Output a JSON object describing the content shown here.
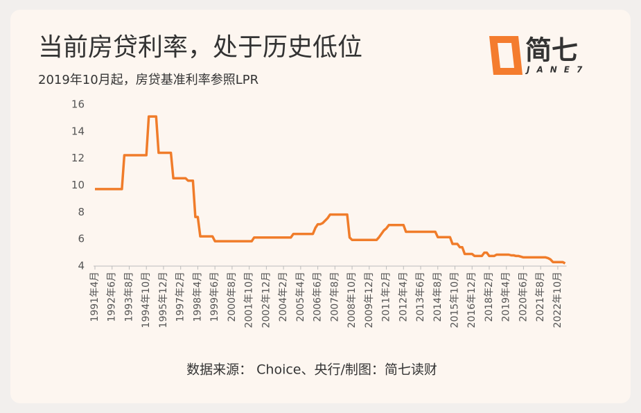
{
  "logo": {
    "name": "简七",
    "sub": "JANE7"
  },
  "chart_data": {
    "type": "line",
    "title": "当前房贷利率，处于历史低位",
    "subtitle": "2019年10月起，房贷基准利率参照LPR",
    "source": "数据来源： Choice、央行/制图：简七读财",
    "color": "#f07c2a",
    "ylim": [
      4,
      16
    ],
    "yticks": [
      4,
      6,
      8,
      10,
      12,
      14,
      16
    ],
    "categories": [
      "1991年4月",
      null,
      null,
      null,
      null,
      null,
      null,
      "1992年6月",
      null,
      null,
      null,
      null,
      null,
      null,
      "1993年8月",
      null,
      null,
      null,
      null,
      null,
      null,
      "1994年10月",
      null,
      null,
      null,
      null,
      null,
      null,
      "1995年12月",
      null,
      null,
      null,
      null,
      null,
      null,
      "1997年2月",
      null,
      null,
      null,
      null,
      null,
      null,
      "1998年4月",
      null,
      null,
      null,
      null,
      null,
      null,
      "1999年6月",
      null,
      null,
      null,
      null,
      null,
      null,
      "2000年8月",
      null,
      null,
      null,
      null,
      null,
      null,
      "2001年10月",
      null,
      null,
      null,
      null,
      null,
      null,
      "2002年12月",
      null,
      null,
      null,
      null,
      null,
      null,
      "2004年2月",
      null,
      null,
      null,
      null,
      null,
      null,
      "2005年4月",
      null,
      null,
      null,
      null,
      null,
      null,
      "2006年6月",
      null,
      null,
      null,
      null,
      null,
      null,
      "2007年8月",
      null,
      null,
      null,
      null,
      null,
      null,
      "2008年10月",
      null,
      null,
      null,
      null,
      null,
      null,
      "2009年12月",
      null,
      null,
      null,
      null,
      null,
      null,
      "2011年2月",
      null,
      null,
      null,
      null,
      null,
      null,
      "2012年4月",
      null,
      null,
      null,
      null,
      null,
      null,
      "2013年6月",
      null,
      null,
      null,
      null,
      null,
      null,
      "2014年8月",
      null,
      null,
      null,
      null,
      null,
      null,
      "2015年10月",
      null,
      null,
      null,
      null,
      null,
      null,
      "2016年12月",
      null,
      null,
      null,
      null,
      null,
      null,
      "2018年2月",
      null,
      null,
      null,
      null,
      null,
      null,
      "2019年4月",
      null,
      null,
      null,
      null,
      null,
      null,
      "2020年6月",
      null,
      null,
      null,
      null,
      null,
      null,
      "2021年8月",
      null,
      null,
      null,
      null,
      null,
      null,
      "2022年10月",
      null,
      null,
      null
    ],
    "values": [
      9.72,
      9.72,
      9.72,
      9.72,
      9.72,
      9.72,
      9.72,
      9.72,
      9.72,
      9.72,
      9.72,
      9.72,
      12.24,
      12.24,
      12.24,
      12.24,
      12.24,
      12.24,
      12.24,
      12.24,
      12.24,
      12.24,
      15.12,
      15.12,
      15.12,
      15.12,
      12.42,
      12.42,
      12.42,
      12.42,
      12.42,
      12.42,
      10.53,
      10.53,
      10.53,
      10.53,
      10.53,
      10.53,
      10.35,
      10.35,
      10.35,
      7.65,
      7.65,
      6.21,
      6.21,
      6.21,
      6.21,
      6.21,
      6.21,
      5.85,
      5.85,
      5.85,
      5.85,
      5.85,
      5.85,
      5.85,
      5.85,
      5.85,
      5.85,
      5.85,
      5.85,
      5.85,
      5.85,
      5.85,
      5.85,
      6.12,
      6.12,
      6.12,
      6.12,
      6.12,
      6.12,
      6.12,
      6.12,
      6.12,
      6.12,
      6.12,
      6.12,
      6.12,
      6.12,
      6.12,
      6.12,
      6.39,
      6.39,
      6.39,
      6.39,
      6.39,
      6.39,
      6.39,
      6.39,
      6.39,
      6.84,
      7.11,
      7.11,
      7.2,
      7.38,
      7.56,
      7.83,
      7.83,
      7.83,
      7.83,
      7.83,
      7.83,
      7.83,
      7.83,
      6.12,
      5.94,
      5.94,
      5.94,
      5.94,
      5.94,
      5.94,
      5.94,
      5.94,
      5.94,
      5.94,
      5.94,
      6.14,
      6.4,
      6.65,
      6.8,
      7.05,
      7.05,
      7.05,
      7.05,
      7.05,
      7.05,
      7.05,
      6.55,
      6.55,
      6.55,
      6.55,
      6.55,
      6.55,
      6.55,
      6.55,
      6.55,
      6.55,
      6.55,
      6.55,
      6.55,
      6.15,
      6.15,
      6.15,
      6.15,
      6.15,
      6.15,
      5.65,
      5.65,
      5.65,
      5.4,
      5.4,
      4.9,
      4.9,
      4.9,
      4.9,
      4.75,
      4.75,
      4.75,
      4.75,
      5.0,
      5.0,
      4.75,
      4.75,
      4.75,
      4.85,
      4.85,
      4.85,
      4.85,
      4.85,
      4.85,
      4.8,
      4.8,
      4.75,
      4.75,
      4.7,
      4.65,
      4.65,
      4.65,
      4.65,
      4.65,
      4.65,
      4.65,
      4.65,
      4.65,
      4.65,
      4.6,
      4.5,
      4.3,
      4.3,
      4.3,
      4.3,
      4.3,
      4.2
    ]
  }
}
